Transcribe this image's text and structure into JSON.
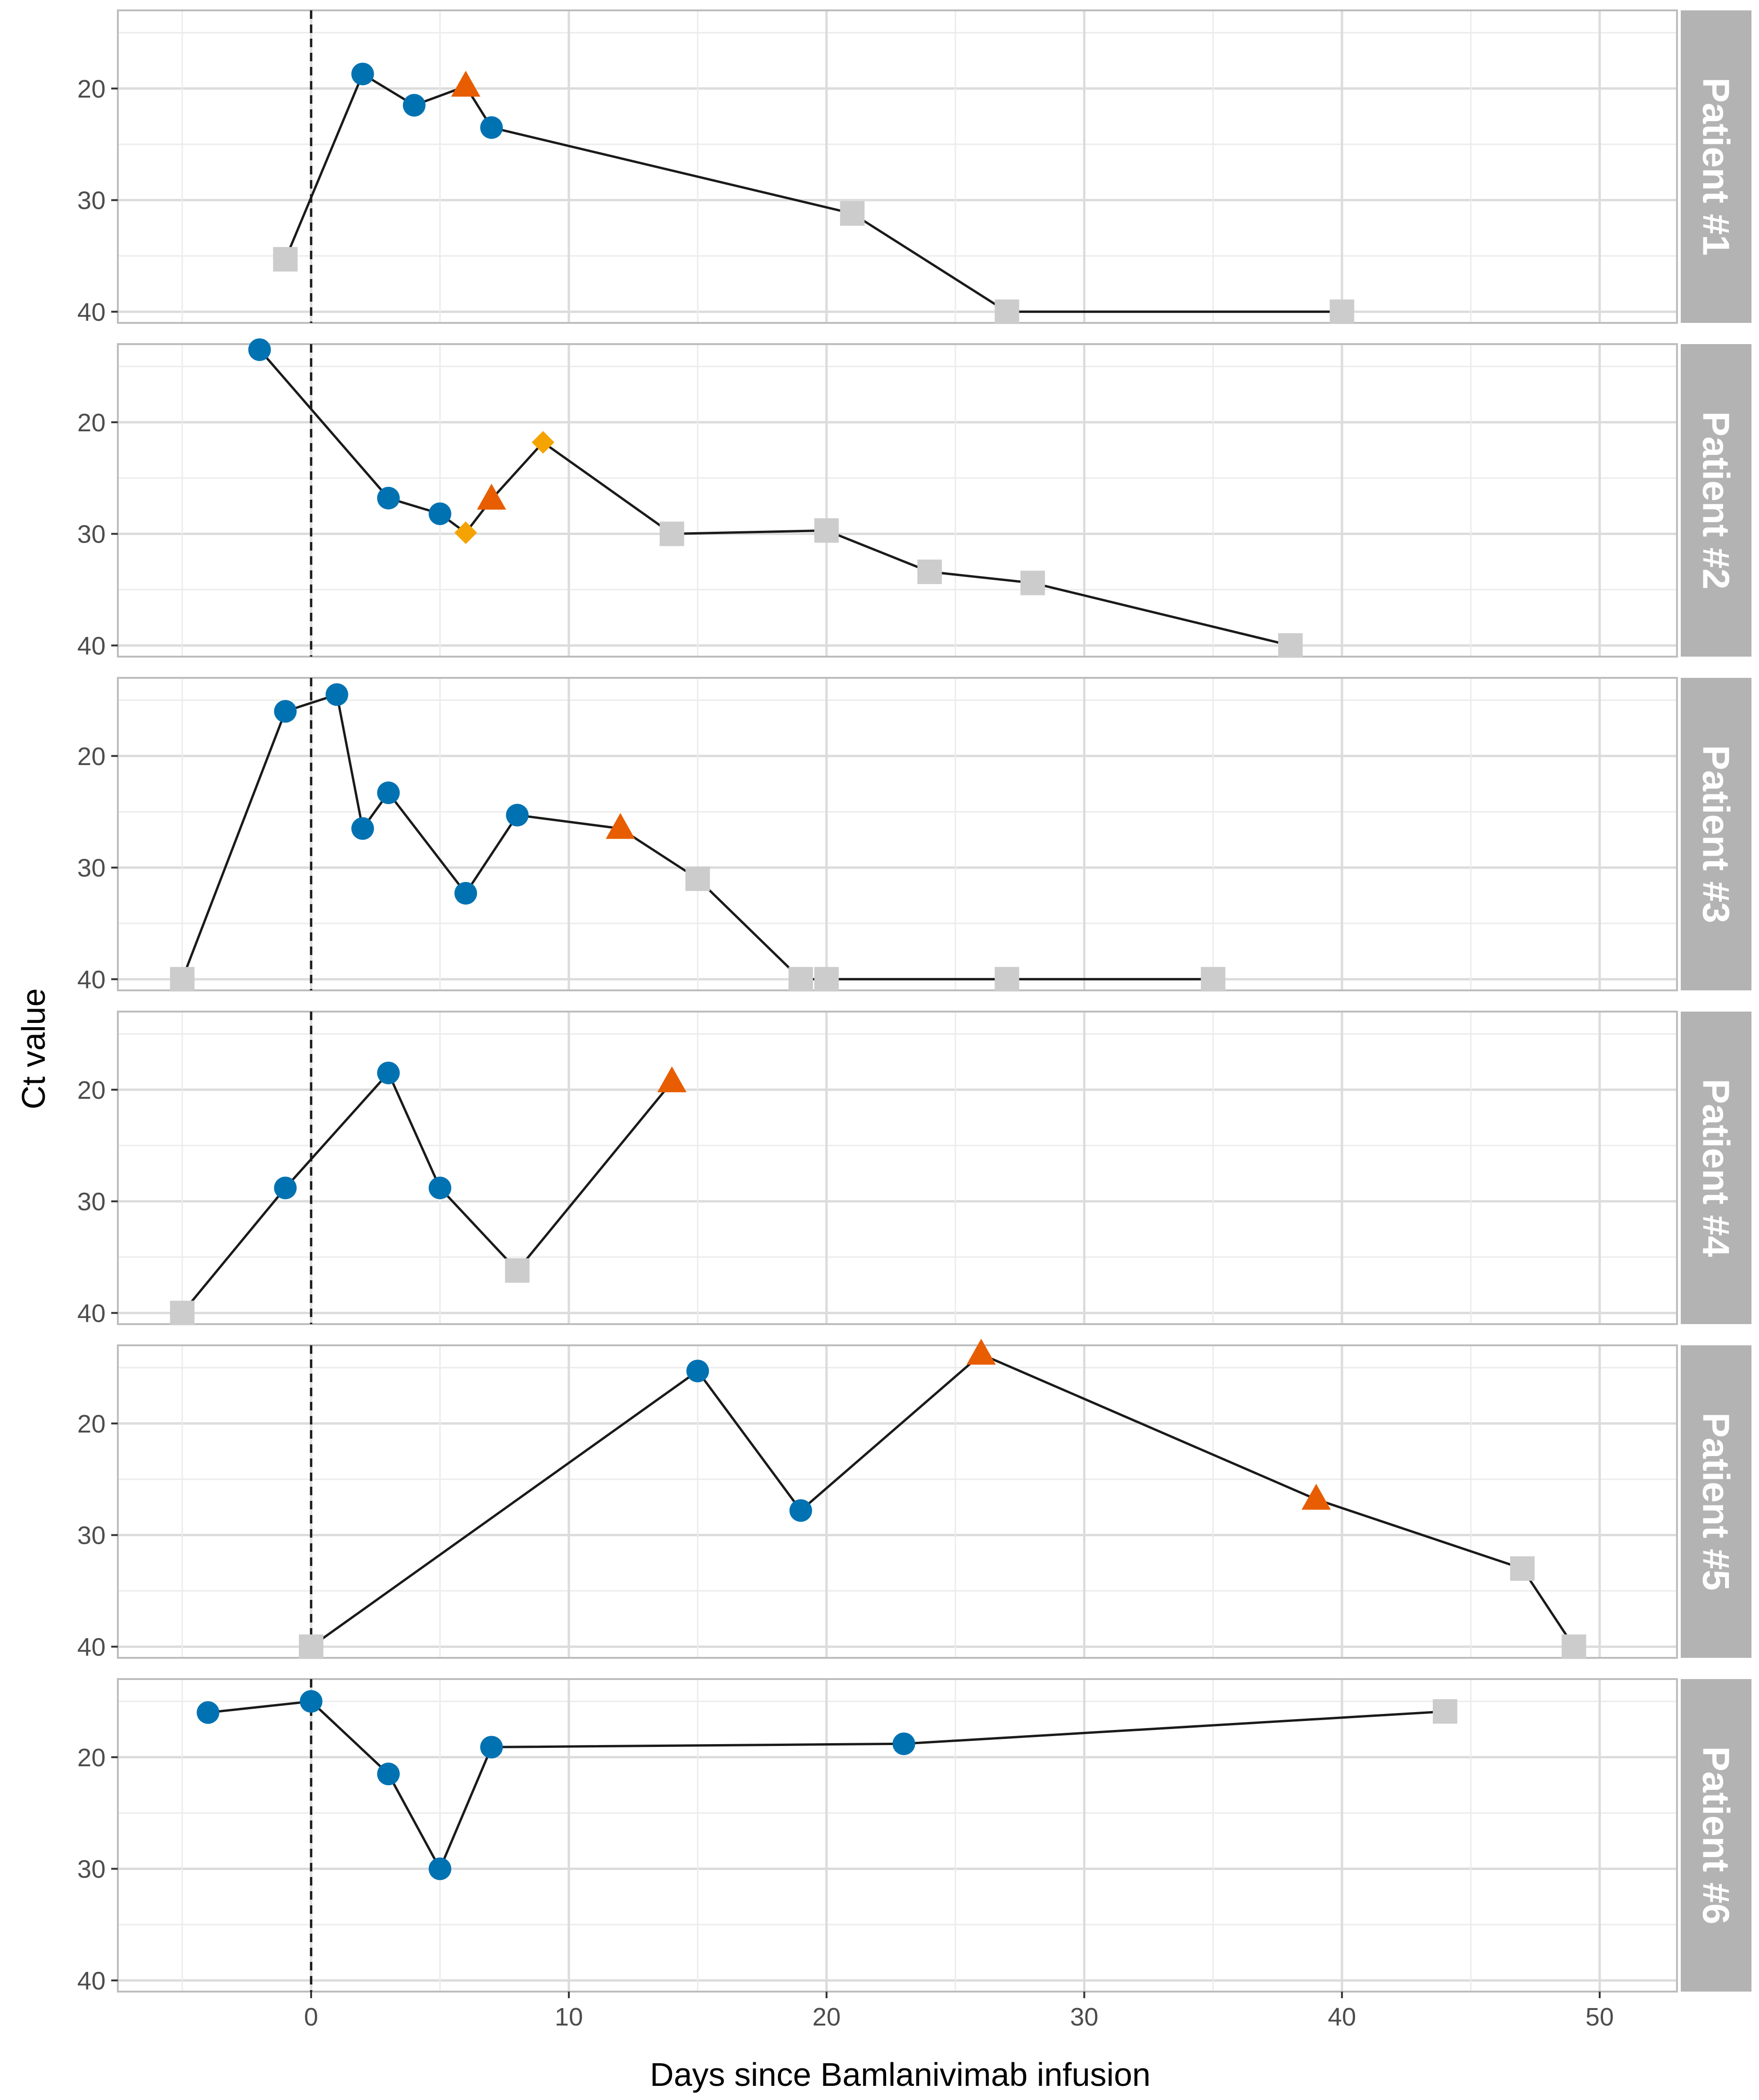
{
  "chart_data": {
    "type": "line",
    "xlabel": "Days since Bamlanivimab infusion",
    "ylabel": "Ct value",
    "xlim": [
      -7.5,
      53
    ],
    "ylim": [
      13,
      41
    ],
    "y_reversed": true,
    "x_ticks": [
      0,
      10,
      20,
      30,
      40,
      50
    ],
    "x_tick_labels": [
      "0",
      "10",
      "20",
      "30",
      "40",
      "50"
    ],
    "y_ticks": [
      20,
      30,
      40
    ],
    "y_tick_labels": [
      "20",
      "30",
      "40"
    ],
    "vline_x": 0,
    "grid": true,
    "marker_colors": {
      "circle": "#0072b2",
      "triangle": "#e85d00",
      "diamond": "#f5a300",
      "square": "#cccccc"
    },
    "line_color": "#1a1a1a",
    "strip_color": "#b3b3b3",
    "panels": [
      {
        "name": "Patient #1",
        "points": [
          {
            "x": -1,
            "y": 35.3,
            "shape": "square"
          },
          {
            "x": 2,
            "y": 18.7,
            "shape": "circle"
          },
          {
            "x": 4,
            "y": 21.5,
            "shape": "circle"
          },
          {
            "x": 6,
            "y": 19.8,
            "shape": "triangle"
          },
          {
            "x": 7,
            "y": 23.5,
            "shape": "circle"
          },
          {
            "x": 21,
            "y": 31.2,
            "shape": "square"
          },
          {
            "x": 27,
            "y": 40,
            "shape": "square"
          },
          {
            "x": 40,
            "y": 40,
            "shape": "square"
          }
        ]
      },
      {
        "name": "Patient #2",
        "points": [
          {
            "x": -2,
            "y": 13.5,
            "shape": "circle"
          },
          {
            "x": 3,
            "y": 26.8,
            "shape": "circle"
          },
          {
            "x": 5,
            "y": 28.2,
            "shape": "circle"
          },
          {
            "x": 6,
            "y": 29.9,
            "shape": "diamond"
          },
          {
            "x": 7,
            "y": 26.9,
            "shape": "triangle"
          },
          {
            "x": 9,
            "y": 21.8,
            "shape": "diamond"
          },
          {
            "x": 14,
            "y": 30,
            "shape": "square"
          },
          {
            "x": 20,
            "y": 29.7,
            "shape": "square"
          },
          {
            "x": 24,
            "y": 33.4,
            "shape": "square"
          },
          {
            "x": 28,
            "y": 34.4,
            "shape": "square"
          },
          {
            "x": 38,
            "y": 40,
            "shape": "square"
          }
        ]
      },
      {
        "name": "Patient #3",
        "points": [
          {
            "x": -5,
            "y": 40,
            "shape": "square"
          },
          {
            "x": -1,
            "y": 16,
            "shape": "circle"
          },
          {
            "x": 1,
            "y": 14.5,
            "shape": "circle"
          },
          {
            "x": 2,
            "y": 26.5,
            "shape": "circle"
          },
          {
            "x": 3,
            "y": 23.3,
            "shape": "circle"
          },
          {
            "x": 6,
            "y": 32.3,
            "shape": "circle"
          },
          {
            "x": 8,
            "y": 25.3,
            "shape": "circle"
          },
          {
            "x": 12,
            "y": 26.5,
            "shape": "triangle"
          },
          {
            "x": 15,
            "y": 31,
            "shape": "square"
          },
          {
            "x": 19,
            "y": 40,
            "shape": "square"
          },
          {
            "x": 20,
            "y": 40,
            "shape": "square"
          },
          {
            "x": 27,
            "y": 40,
            "shape": "square"
          },
          {
            "x": 35,
            "y": 40,
            "shape": "square"
          }
        ]
      },
      {
        "name": "Patient #4",
        "points": [
          {
            "x": -5,
            "y": 40,
            "shape": "square"
          },
          {
            "x": -1,
            "y": 28.8,
            "shape": "circle"
          },
          {
            "x": 3,
            "y": 18.5,
            "shape": "circle"
          },
          {
            "x": 5,
            "y": 28.8,
            "shape": "circle"
          },
          {
            "x": 8,
            "y": 36.2,
            "shape": "square"
          },
          {
            "x": 14,
            "y": 19.3,
            "shape": "triangle"
          }
        ]
      },
      {
        "name": "Patient #5",
        "points": [
          {
            "x": 0,
            "y": 40,
            "shape": "square"
          },
          {
            "x": 15,
            "y": 15.3,
            "shape": "circle"
          },
          {
            "x": 19,
            "y": 27.8,
            "shape": "circle"
          },
          {
            "x": 26,
            "y": 13.8,
            "shape": "triangle"
          },
          {
            "x": 39,
            "y": 26.8,
            "shape": "triangle"
          },
          {
            "x": 47,
            "y": 33,
            "shape": "square"
          },
          {
            "x": 49,
            "y": 40,
            "shape": "square"
          }
        ]
      },
      {
        "name": "Patient #6",
        "points": [
          {
            "x": -4,
            "y": 16,
            "shape": "circle"
          },
          {
            "x": 0,
            "y": 15,
            "shape": "circle"
          },
          {
            "x": 3,
            "y": 21.5,
            "shape": "circle"
          },
          {
            "x": 5,
            "y": 30,
            "shape": "circle"
          },
          {
            "x": 7,
            "y": 19.1,
            "shape": "circle"
          },
          {
            "x": 23,
            "y": 18.8,
            "shape": "circle"
          },
          {
            "x": 44,
            "y": 15.9,
            "shape": "square"
          }
        ]
      }
    ]
  }
}
